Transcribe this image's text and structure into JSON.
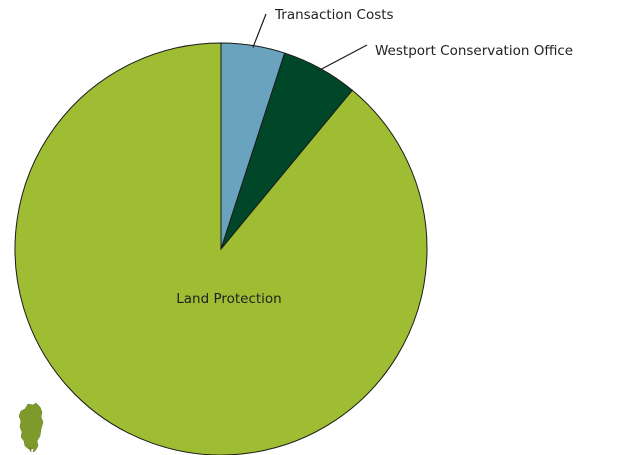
{
  "chart_data": {
    "type": "pie",
    "start_angle": "12 o'clock",
    "direction": "clockwise",
    "slices": [
      {
        "label": "Transaction Costs",
        "value": 5,
        "color": "#6aa3be",
        "label_style": "external-leader"
      },
      {
        "label": "Westport Conservation Office",
        "value": 6,
        "color": "#00472a",
        "label_style": "external-leader"
      },
      {
        "label": "Land Protection",
        "value": 89,
        "color": "#9ebd32",
        "label_style": "internal"
      }
    ],
    "border_color": "#1a1a1a"
  },
  "decorations": {
    "logo": {
      "icon": "green-leaf-figure-icon",
      "color": "#7d9a2b"
    }
  }
}
